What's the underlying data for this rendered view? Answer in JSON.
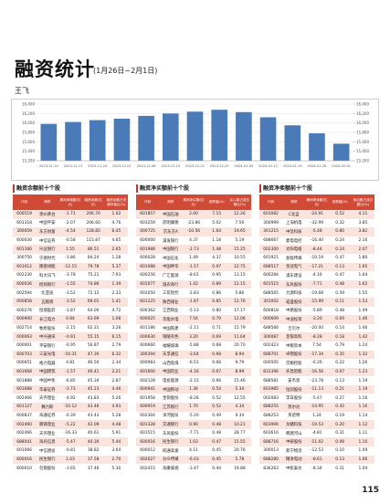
{
  "header": {
    "title": "融资统计",
    "date_range": "(1月26日~2月1日)",
    "author": "王飞"
  },
  "chart_data": {
    "type": "bar",
    "color": "#4a7ab8",
    "categories": [
      "2023-11-10",
      "2023-11-17",
      "2023-11-24",
      "2023-12-01",
      "2023-12-08",
      "2023-12-15",
      "2023-12-22",
      "2023-12-29",
      "2024-01-05",
      "2024-01-12",
      "2024-01-19",
      "2024-01-26",
      "2024-02-01"
    ],
    "values": [
      15980,
      16020,
      16060,
      16090,
      16150,
      16200,
      16240,
      16280,
      16230,
      16120,
      15950,
      15780,
      15560
    ],
    "ylim": [
      15200,
      16400
    ],
    "yticks": [
      {
        "value": 15200,
        "label": "15,200"
      },
      {
        "value": 15400,
        "label": "15,400"
      },
      {
        "value": 15600,
        "label": "15,600"
      },
      {
        "value": 15800,
        "label": "15,800"
      },
      {
        "value": 16000,
        "label": "16,000"
      },
      {
        "value": 16200,
        "label": "16,200"
      },
      {
        "value": 16400,
        "label": "16,400"
      }
    ],
    "y2lim": [
      15200,
      16400
    ],
    "y2ticks": [
      {
        "value": 15200,
        "label": "15,200"
      },
      {
        "value": 15400,
        "label": "15,400"
      },
      {
        "value": 15600,
        "label": "15,600"
      },
      {
        "value": 15800,
        "label": "15,800"
      },
      {
        "value": 16000,
        "label": "16,000"
      },
      {
        "value": 16200,
        "label": "16,200"
      },
      {
        "value": 16400,
        "label": "16,400"
      }
    ]
  },
  "tables": [
    {
      "title": "融资余额前十个股",
      "columns": [
        "代码",
        "简称",
        "期间净增额(亿元)",
        "融资余额(亿元)",
        "融资余额占流通市值比(%)"
      ],
      "rows": [
        [
          "600519",
          "贵州茅台",
          "-1.71",
          "206.70",
          "1.02"
        ],
        [
          "601318",
          "中国平安",
          "-2.07",
          "206.60",
          "4.76"
        ],
        [
          "300059",
          "东方财富",
          "-4.54",
          "128.85",
          "6.45"
        ],
        [
          "600030",
          "中信证券",
          "-0.58",
          "115.87",
          "4.65"
        ],
        [
          "601166",
          "兴业银行",
          "1.55",
          "86.51",
          "2.65"
        ],
        [
          "300750",
          "宁德时代",
          "-3.86",
          "84.24",
          "1.28"
        ],
        [
          "601012",
          "隆基绿能",
          "-12.15",
          "79.78",
          "5.37"
        ],
        [
          "002230",
          "科大讯飞",
          "-3.78",
          "75.21",
          "7.93"
        ],
        [
          "600036",
          "招商银行",
          "-1.55",
          "74.86",
          "1.39"
        ],
        [
          "002594",
          "比亚迪",
          "-3.52",
          "72.12",
          "2.33"
        ],
        [
          "000858",
          "五粮液",
          "-3.52",
          "69.01",
          "1.41"
        ],
        [
          "600276",
          "恒瑞医药",
          "-1.87",
          "64.00",
          "4.72"
        ],
        [
          "600900",
          "长江电力",
          "0.84",
          "63.69",
          "1.08"
        ],
        [
          "002714",
          "牧原股份",
          "-2.15",
          "62.31",
          "3.26"
        ],
        [
          "000063",
          "中兴通讯",
          "-0.91",
          "55.15",
          "6.15"
        ],
        [
          "000001",
          "平安银行",
          "-0.95",
          "50.87",
          "2.79"
        ],
        [
          "600703",
          "三安光电",
          "-10.31",
          "47.30",
          "6.32"
        ],
        [
          "000651",
          "格力电器",
          "4.81",
          "46.50",
          "2.34"
        ],
        [
          "601668",
          "中国建筑",
          "-1.57",
          "46.41",
          "2.21"
        ],
        [
          "601888",
          "中国中免",
          "-6.85",
          "45.34",
          "2.87"
        ],
        [
          "601688",
          "华泰证券",
          "-2.73",
          "45.23",
          "4.46"
        ],
        [
          "002466",
          "天齐锂业",
          "-4.92",
          "43.83",
          "5.26"
        ],
        [
          "601127",
          "赛力斯",
          "-10.12",
          "43.46",
          "4.93"
        ],
        [
          "600837",
          "海通证券",
          "-0.39",
          "43.43",
          "5.28"
        ],
        [
          "002460",
          "赣锋锂业",
          "-5.22",
          "42.09",
          "4.48"
        ],
        [
          "002466",
          "天齐锂业",
          "-16.33",
          "40.61",
          "5.91"
        ],
        [
          "688041",
          "海光信息",
          "-5.47",
          "40.30",
          "5.44"
        ],
        [
          "601066",
          "中信建投",
          "-0.81",
          "38.82",
          "3.64"
        ],
        [
          "600016",
          "民生银行",
          "1.03",
          "37.58",
          "2.70"
        ],
        [
          "600010",
          "包钢股份",
          "-3.65",
          "37.46",
          "5.30"
        ]
      ]
    },
    {
      "title": "融资净买额前十个股",
      "columns": [
        "代码",
        "简称",
        "期间净买额(亿元)",
        "涨跌幅(%)",
        "买入额占成交额比(%)"
      ],
      "rows": [
        [
          "601857",
          "中国石油",
          "2.00",
          "7.15",
          "12.26"
        ],
        [
          "603259",
          "药明康德",
          "-23.86",
          "5.02",
          "7.56"
        ],
        [
          "000725",
          "京东方A",
          "-10.56",
          "1.64",
          "19.65"
        ],
        [
          "600000",
          "浦发银行",
          "4.37",
          "1.18",
          "5.19"
        ],
        [
          "601988",
          "中国银行",
          "-2.73",
          "1.48",
          "15.25"
        ],
        [
          "600028",
          "中国石化",
          "1.49",
          "4.37",
          "10.55"
        ],
        [
          "601088",
          "中国神华",
          "-1.57",
          "0.97",
          "12.75"
        ],
        [
          "600256",
          "广汇能源",
          "-8.61",
          "0.95",
          "13.15"
        ],
        [
          "601077",
          "渝农商行",
          "1.42",
          "0.89",
          "12.15"
        ],
        [
          "002050",
          "三花智控",
          "-2.83",
          "0.86",
          "5.86"
        ],
        [
          "601225",
          "陕西煤业",
          "-1.87",
          "0.85",
          "12.76"
        ],
        [
          "600362",
          "江西铜业",
          "-5.13",
          "0.80",
          "17.17"
        ],
        [
          "600025",
          "华能水电",
          "7.54",
          "0.79",
          "12.06"
        ],
        [
          "601186",
          "中国铁建",
          "-2.11",
          "0.71",
          "15.79"
        ],
        [
          "000630",
          "铜陵有色",
          "3.20",
          "0.69",
          "11.64"
        ],
        [
          "600660",
          "福耀玻璃",
          "-5.88",
          "0.68",
          "20.70"
        ],
        [
          "300394",
          "天孚通信",
          "-3.64",
          "0.68",
          "8.94"
        ],
        [
          "000983",
          "山西焦煤",
          "-6.51",
          "0.68",
          "9.79"
        ],
        [
          "601600",
          "中国铝业",
          "-4.16",
          "0.67",
          "8.99"
        ],
        [
          "002128",
          "电投能源",
          "-2.15",
          "0.66",
          "15.46"
        ],
        [
          "600941",
          "中国移动",
          "1.36",
          "0.54",
          "5.34"
        ],
        [
          "601958",
          "金钼股份",
          "-8.28",
          "0.52",
          "12.55"
        ],
        [
          "600919",
          "江苏银行",
          "1.70",
          "0.52",
          "4.34"
        ],
        [
          "002304",
          "洋河股份",
          "-5.20",
          "0.49",
          "9.34"
        ],
        [
          "601328",
          "交通银行",
          "0.90",
          "0.48",
          "10.21"
        ],
        [
          "601515",
          "东风股份",
          "-7.71",
          "0.48",
          "28.77"
        ],
        [
          "600016",
          "民生银行",
          "1.03",
          "0.47",
          "15.55"
        ],
        [
          "600012",
          "皖通高速",
          "4.11",
          "0.45",
          "20.76"
        ],
        [
          "002027",
          "分众传媒",
          "-6.03",
          "0.45",
          "5.78"
        ],
        [
          "002415",
          "海康威视",
          "-3.47",
          "0.44",
          "19.88"
        ]
      ]
    },
    {
      "title": "融资净卖额前十个股",
      "columns": [
        "代码",
        "简称",
        "期间净卖额(亿元)",
        "涨跌幅(%)",
        "卖出额占成交额比(%)"
      ],
      "rows": [
        [
          "603082",
          "C北自",
          "-24.91",
          "0.52",
          "4.11"
        ],
        [
          "300999",
          "上海机电",
          "-32.99",
          "0.32",
          "3.85"
        ],
        [
          "301215",
          "中坚科技",
          "-5.48",
          "0.80",
          "3.82"
        ],
        [
          "688667",
          "菱电电控",
          "-16.40",
          "0.24",
          "2.16"
        ],
        [
          "002300",
          "太阳电缆",
          "-8.44",
          "0.24",
          "2.07"
        ],
        [
          "601921",
          "浙版传媒",
          "-10.19",
          "0.47",
          "1.80"
        ],
        [
          "688517",
          "金冠电气",
          "-17.21",
          "0.13",
          "1.65"
        ],
        [
          "600284",
          "浦东建设",
          "-4.16",
          "0.47",
          "1.64"
        ],
        [
          "601515",
          "东风股份",
          "-7.71",
          "0.48",
          "1.62"
        ],
        [
          "688565",
          "力源科技",
          "-19.68",
          "0.59",
          "1.55"
        ],
        [
          "301002",
          "崧盛股份",
          "-15.99",
          "0.11",
          "1.53"
        ],
        [
          "600818",
          "中路股份",
          "-5.89",
          "0.48",
          "1.49"
        ],
        [
          "000609",
          "中迪投资",
          "-3.20",
          "0.69",
          "1.46"
        ],
        [
          "688566",
          "吉贝尔",
          "-20.00",
          "0.14",
          "1.46"
        ],
        [
          "300087",
          "荃银高科",
          "-8.28",
          "0.18",
          "1.42"
        ],
        [
          "002423",
          "中粮资本",
          "7.54",
          "0.79",
          "1.24"
        ],
        [
          "688701",
          "卓锦股份",
          "-17.34",
          "0.35",
          "1.32"
        ],
        [
          "000505",
          "京粮控股",
          "-0.26",
          "0.22",
          "1.26"
        ],
        [
          "831396",
          "许昌智能",
          "-16.56",
          "0.07",
          "1.23"
        ],
        [
          "688581",
          "安杰思",
          "-23.78",
          "0.13",
          "1.19"
        ],
        [
          "603985",
          "恒润股份",
          "-11.13",
          "0.21",
          "1.19"
        ],
        [
          "002083",
          "孚日股份",
          "-5.47",
          "0.27",
          "1.16"
        ],
        [
          "688255",
          "凯尔达",
          "-14.95",
          "0.42",
          "1.16"
        ],
        [
          "688253",
          "英诺特",
          "1.24",
          "0.19",
          "1.14"
        ],
        [
          "603906",
          "龙蟠科技",
          "-19.53",
          "0.20",
          "1.12"
        ],
        [
          "603616",
          "韩建河山",
          "-4.81",
          "0.31",
          "1.11"
        ],
        [
          "688716",
          "中研股份",
          "-11.02",
          "0.08",
          "1.10"
        ],
        [
          "300013",
          "新宁物流",
          "-12.53",
          "0.10",
          "1.09"
        ],
        [
          "688280",
          "精进电动",
          "-8.61",
          "0.13",
          "1.06"
        ],
        [
          "836263",
          "中航泰达",
          "-8.34",
          "0.31",
          "1.04"
        ]
      ]
    }
  ],
  "page_number": "115"
}
